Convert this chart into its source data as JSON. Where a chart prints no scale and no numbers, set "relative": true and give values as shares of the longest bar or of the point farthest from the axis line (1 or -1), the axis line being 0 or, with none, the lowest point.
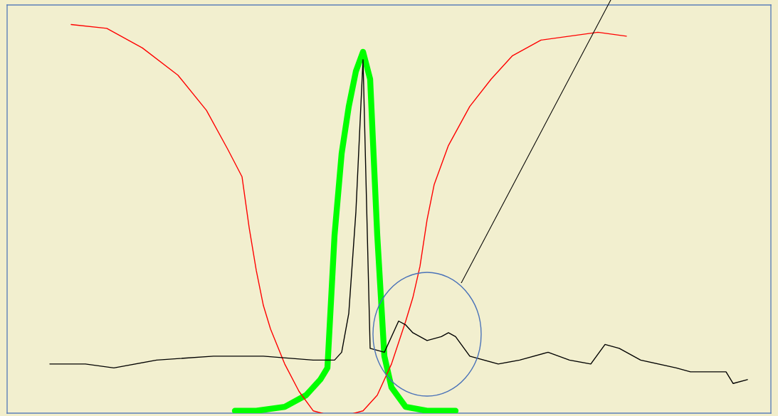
{
  "chart_data": {
    "type": "line",
    "relative": true,
    "legend": false,
    "grid": false,
    "categories": [
      null,
      null,
      null,
      null,
      null,
      null,
      null,
      null,
      null,
      null,
      null,
      null,
      null,
      null,
      null,
      null,
      null,
      null,
      null,
      null,
      null,
      null,
      null,
      null,
      null,
      null,
      null,
      null,
      null,
      null,
      null,
      null,
      null,
      null,
      null,
      null,
      null,
      null,
      null,
      null,
      null,
      null,
      null,
      null,
      null,
      null,
      null,
      null,
      null,
      null,
      null,
      null,
      null,
      null,
      null,
      null,
      null,
      null,
      null,
      null,
      null,
      null,
      null,
      null,
      null,
      null,
      null,
      null,
      null,
      null,
      null,
      null,
      null,
      null,
      null,
      null,
      null,
      null,
      null,
      null,
      null,
      null,
      null,
      null,
      null,
      null,
      null,
      null,
      null,
      null,
      null,
      null,
      null,
      null,
      null,
      null,
      null,
      null,
      null
    ],
    "series": [
      {
        "color": "#ff0000",
        "values": [
          null,
          null,
          null,
          1.0,
          null,
          null,
          null,
          null,
          0.99,
          null,
          null,
          null,
          null,
          0.94,
          null,
          null,
          null,
          null,
          0.87,
          null,
          null,
          null,
          0.78,
          null,
          null,
          0.68,
          null,
          0.61,
          0.48,
          0.37,
          0.28,
          0.22,
          null,
          0.13,
          null,
          0.06,
          null,
          0.01,
          null,
          0,
          null,
          null,
          0,
          null,
          0.01,
          null,
          0.05,
          null,
          0.13,
          null,
          0.24,
          0.3,
          0.38,
          0.5,
          0.59,
          null,
          0.69,
          null,
          null,
          0.79,
          null,
          null,
          0.86,
          null,
          null,
          0.92,
          null,
          null,
          null,
          0.96,
          null,
          null,
          null,
          0.97,
          null,
          null,
          null,
          0.98,
          null,
          null,
          null,
          0.97,
          null,
          null,
          null,
          null,
          null,
          null,
          null,
          null,
          null,
          null,
          null,
          null,
          null,
          null,
          null,
          null,
          null
        ]
      },
      {
        "color": "#000000",
        "values": [
          0.13,
          null,
          null,
          null,
          null,
          0.13,
          null,
          null,
          null,
          0.12,
          null,
          null,
          null,
          null,
          null,
          0.14,
          null,
          null,
          null,
          null,
          null,
          null,
          null,
          0.15,
          null,
          null,
          null,
          null,
          null,
          null,
          0.15,
          null,
          null,
          null,
          null,
          null,
          null,
          0.14,
          null,
          null,
          0.14,
          0.16,
          0.26,
          0.52,
          0.91,
          0.17,
          null,
          0.16,
          0.2,
          0.24,
          0.23,
          0.21,
          null,
          0.19,
          null,
          0.2,
          0.21,
          0.2,
          null,
          0.15,
          null,
          null,
          null,
          0.13,
          null,
          null,
          0.14,
          null,
          null,
          null,
          0.16,
          null,
          null,
          0.14,
          null,
          null,
          0.13,
          null,
          0.18,
          null,
          0.17,
          null,
          null,
          0.14,
          null,
          null,
          null,
          null,
          0.12,
          null,
          0.11,
          null,
          null,
          0.11,
          null,
          0.11,
          0.08,
          null,
          0.09
        ]
      },
      {
        "color": "#00ff00",
        "values": [
          null,
          null,
          null,
          null,
          null,
          null,
          null,
          null,
          null,
          null,
          null,
          null,
          null,
          null,
          null,
          null,
          null,
          null,
          null,
          null,
          null,
          null,
          null,
          null,
          null,
          null,
          0.01,
          null,
          null,
          0.01,
          null,
          null,
          null,
          0.02,
          null,
          null,
          0.05,
          null,
          0.09,
          0.12,
          0.46,
          0.67,
          0.79,
          0.88,
          0.93,
          0.86,
          0.46,
          0.15,
          0.07,
          null,
          0.02,
          null,
          null,
          0.01,
          null,
          null,
          null,
          0.01,
          null,
          null,
          null,
          null,
          null,
          null,
          null,
          null,
          null,
          null,
          null,
          null,
          null,
          null,
          null,
          null,
          null,
          null,
          null,
          null,
          null,
          null,
          null,
          null,
          null,
          null,
          null,
          null,
          null,
          null,
          null,
          null,
          null,
          null,
          null,
          null,
          null,
          null,
          null,
          null,
          null
        ]
      }
    ]
  }
}
